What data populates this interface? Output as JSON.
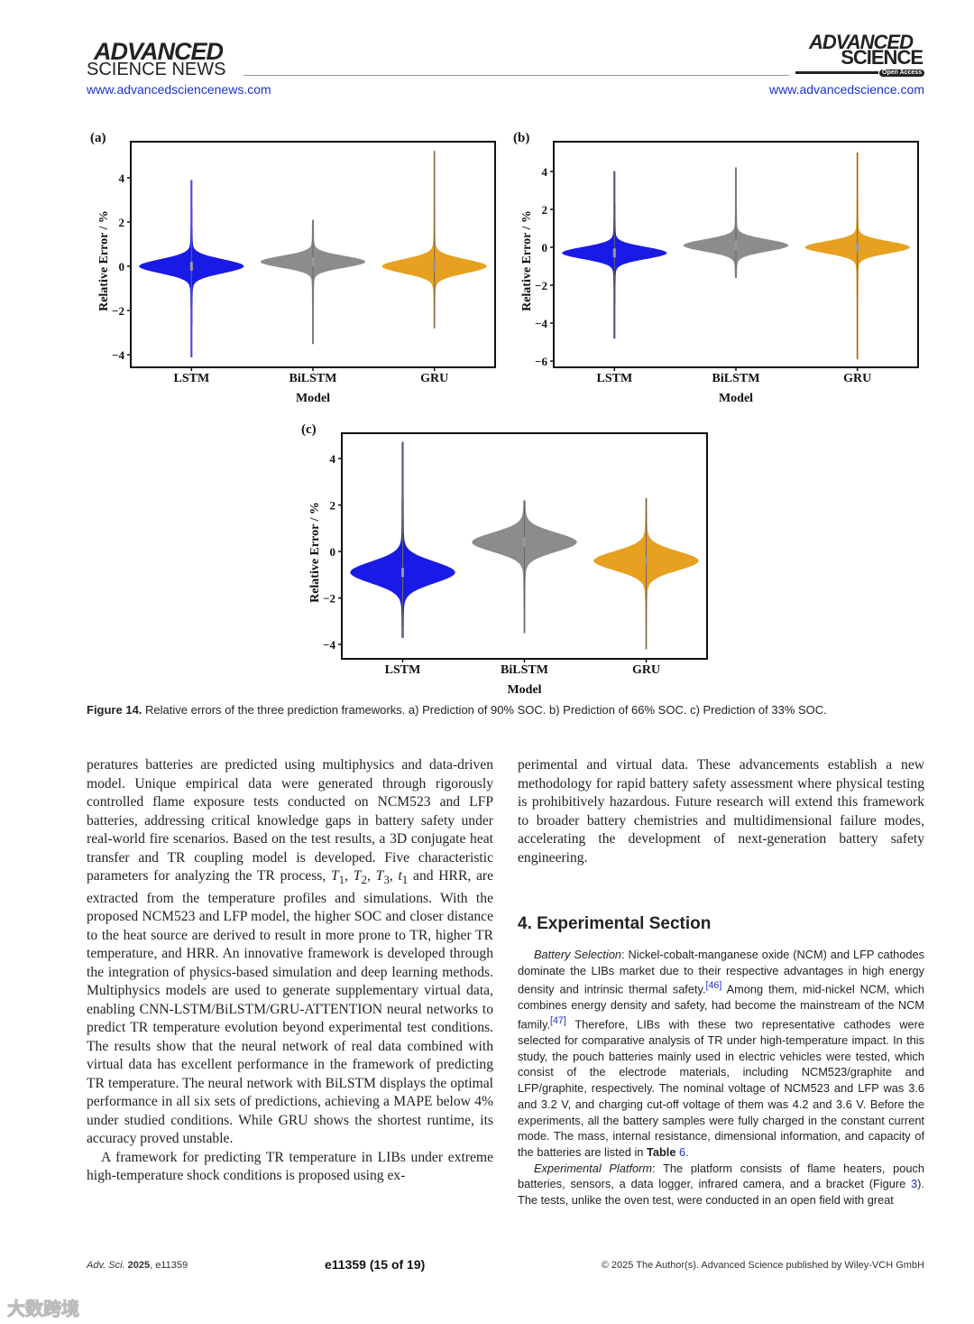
{
  "header": {
    "left_logo_line1": "ADVANCED",
    "left_logo_line2": "SCIENCE NEWS",
    "left_url": "www.advancedsciencenews.com",
    "right_logo_line1": "ADVANCED",
    "right_logo_line2": "SCIENCE",
    "right_badge": "Open Access",
    "right_url": "www.advancedscience.com"
  },
  "chart_data": [
    {
      "panel": "(a)",
      "type": "violin",
      "xlabel": "Model",
      "ylabel": "Relative Error / %",
      "categories": [
        "LSTM",
        "BiLSTM",
        "GRU"
      ],
      "colors": [
        "#1a1ae6",
        "#8c8c8c",
        "#e8a020"
      ],
      "ylim": [
        -4.57,
        5.63
      ],
      "yticks": [
        -4,
        -2,
        0,
        2,
        4
      ],
      "ytick_labels": [
        "−4",
        "−2",
        "0",
        "2",
        "4"
      ],
      "series": [
        {
          "name": "LSTM",
          "center": 0,
          "min": -4.1,
          "max": 3.9,
          "spread": 0.3
        },
        {
          "name": "BiLSTM",
          "center": 0.2,
          "min": -3.5,
          "max": 2.1,
          "spread": 0.25
        },
        {
          "name": "GRU",
          "center": 0.0,
          "min": -2.8,
          "max": 5.2,
          "spread": 0.3
        }
      ]
    },
    {
      "panel": "(b)",
      "type": "violin",
      "xlabel": "Model",
      "ylabel": "Relative Error / %",
      "categories": [
        "LSTM",
        "BiLSTM",
        "GRU"
      ],
      "colors": [
        "#1a1ae6",
        "#8c8c8c",
        "#e8a020"
      ],
      "ylim": [
        -6.33,
        5.57
      ],
      "yticks": [
        -6,
        -4,
        -2,
        0,
        2,
        4
      ],
      "ytick_labels": [
        "−6",
        "−4",
        "−2",
        "0",
        "2",
        "4"
      ],
      "series": [
        {
          "name": "LSTM",
          "center": -0.3,
          "min": -4.8,
          "max": 4.0,
          "spread": 0.3
        },
        {
          "name": "BiLSTM",
          "center": 0.1,
          "min": -1.6,
          "max": 4.2,
          "spread": 0.3
        },
        {
          "name": "GRU",
          "center": 0.0,
          "min": -5.9,
          "max": 5.0,
          "spread": 0.3
        }
      ]
    },
    {
      "panel": "(c)",
      "type": "violin",
      "xlabel": "Model",
      "ylabel": "Relative Error / %",
      "categories": [
        "LSTM",
        "BiLSTM",
        "GRU"
      ],
      "colors": [
        "#1a1ae6",
        "#8c8c8c",
        "#e8a020"
      ],
      "ylim": [
        -4.62,
        5.09
      ],
      "yticks": [
        -4,
        -2,
        0,
        2,
        4
      ],
      "ytick_labels": [
        "−4",
        "−2",
        "0",
        "2",
        "4"
      ],
      "series": [
        {
          "name": "LSTM",
          "center": -0.9,
          "min": -3.7,
          "max": 4.7,
          "spread": 0.45
        },
        {
          "name": "BiLSTM",
          "center": 0.4,
          "min": -3.5,
          "max": 2.2,
          "spread": 0.4
        },
        {
          "name": "GRU",
          "center": -0.4,
          "min": -4.2,
          "max": 2.3,
          "spread": 0.4
        }
      ]
    }
  ],
  "caption": {
    "label": "Figure 14.",
    "text": " Relative errors of the three prediction frameworks. a) Prediction of 90% SOC. b) Prediction of 66% SOC. c) Prediction of 33% SOC."
  },
  "left_column": {
    "p1_a": "peratures batteries are predicted using multiphysics and data-driven model. Unique empirical data were generated through rigorously controlled flame exposure tests conducted on NCM523 and LFP batteries, addressing critical knowledge gaps in battery safety under real-world fire scenarios. Based on the test results, a 3D conjugate heat transfer and TR coupling model is developed. Five characteristic parameters for analyzing the TR process, ",
    "T": "T",
    "t": "t",
    "s1": "1",
    "s2": "2",
    "s3": "3",
    "p1_b": " and HRR, are extracted from the temperature profiles and simulations. With the proposed NCM523 and LFP model, the higher SOC and closer distance to the heat source are derived to result in more prone to TR, higher TR temperature, and HRR. An innovative framework is developed through the integration of physics-based simulation and deep learning methods. Multiphysics models are used to generate supplementary virtual data, enabling CNN-LSTM/BiLSTM/GRU-ATTENTION neural networks to predict TR temperature evolution beyond experimental test conditions. The results show that the neural network of real data combined with virtual data has excellent performance in the framework of predicting TR temperature. The neural network with BiLSTM displays the optimal performance in all six sets of predictions, achieving a MAPE below 4% under studied conditions. While GRU shows the shortest runtime, its accuracy proved unstable.",
    "p2": "A framework for predicting TR temperature in LIBs under extreme high-temperature shock conditions is proposed using ex-"
  },
  "right_column": {
    "p1": "perimental and virtual data. These advancements establish a new methodology for rapid battery safety assessment where physical testing is prohibitively hazardous. Future research will extend this framework to broader battery chemistries and multidimensional failure modes, accelerating the development of next-generation battery safety engineering.",
    "section_title": "4. Experimental Section",
    "bs_title": "Battery Selection",
    "bs_a": ":  Nickel-cobalt-manganese oxide (NCM) and LFP cathodes dominate the LIBs market due to their respective advantages in high energy density and intrinsic thermal safety.",
    "ref46": "[46]",
    "bs_b": " Among them, mid-nickel NCM, which combines energy density and safety, had become the mainstream of the NCM family.",
    "ref47": "[47]",
    "bs_c": " Therefore, LIBs with these two representative cathodes were selected for comparative analysis of TR under high-temperature impact. In this study, the pouch batteries mainly used in electric vehicles were tested, which consist of the electrode materials, including NCM523/graphite and LFP/graphite, respectively. The nominal voltage of NCM523 and LFP was 3.6 and 3.2 V, and charging cut-off voltage of them was 4.2 and 3.6 V. Before the experiments, all the battery samples were fully charged in the constant current mode. The mass, internal resistance, dimensional information, and capacity of the batteries are listed in ",
    "table_word": "Table",
    "table_num": "6",
    "ep_title": "Experimental Platform",
    "ep_a": ":   The platform consists of flame heaters, pouch batteries, sensors, a data logger, infrared camera, and a bracket (Figure ",
    "fig_num": "3",
    "ep_b": "). The tests, unlike the oven test, were conducted in an open field with great"
  },
  "footer": {
    "journal": "Adv. Sci.",
    "year": "2025",
    "article": ", e11359",
    "page": "e11359 (15 of 19)",
    "copyright": "© 2025 The Author(s). Advanced Science published by Wiley-VCH GmbH"
  },
  "watermark": "大数跨境"
}
